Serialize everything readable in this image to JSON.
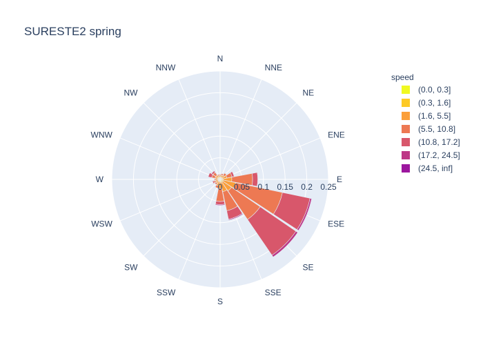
{
  "chart_data": {
    "type": "barpolar",
    "title": "SURESTE2 spring",
    "directions": [
      "N",
      "NNE",
      "NE",
      "ENE",
      "E",
      "ESE",
      "SE",
      "SSE",
      "S",
      "SSW",
      "SW",
      "WSW",
      "W",
      "WNW",
      "NW",
      "NNW"
    ],
    "radial_ticks": [
      "0",
      "0.05",
      "0.1",
      "0.15",
      "0.2",
      "0.25"
    ],
    "radial_tick_values": [
      0,
      0.05,
      0.1,
      0.15,
      0.2,
      0.25
    ],
    "radial_range": [
      0,
      0.25
    ],
    "legend_title": "speed",
    "legend_placement": "right",
    "series": [
      {
        "name": "(0.0, 0.3]",
        "color": "#f0f921",
        "values": [
          0.002,
          0.002,
          0.002,
          0.002,
          0.002,
          0.002,
          0.002,
          0.002,
          0.002,
          0.002,
          0.002,
          0.002,
          0.002,
          0.002,
          0.002,
          0.002
        ]
      },
      {
        "name": "(0.3, 1.6]",
        "color": "#fdca26",
        "values": [
          0.004,
          0.003,
          0.003,
          0.004,
          0.005,
          0.005,
          0.005,
          0.005,
          0.004,
          0.003,
          0.003,
          0.003,
          0.003,
          0.004,
          0.004,
          0.003
        ]
      },
      {
        "name": "(1.6, 5.5]",
        "color": "#fb9f3a",
        "values": [
          0.004,
          0.005,
          0.007,
          0.01,
          0.02,
          0.03,
          0.025,
          0.022,
          0.015,
          0.01,
          0.006,
          0.006,
          0.005,
          0.006,
          0.006,
          0.004
        ]
      },
      {
        "name": "(5.5, 10.8]",
        "color": "#ed7953",
        "values": [
          0.002,
          0.004,
          0.006,
          0.012,
          0.048,
          0.11,
          0.08,
          0.045,
          0.03,
          0.006,
          0.004,
          0.004,
          0.003,
          0.008,
          0.008,
          0.003
        ]
      },
      {
        "name": "(10.8, 17.2]",
        "color": "#d8576b",
        "values": [
          0.0,
          0.001,
          0.001,
          0.005,
          0.012,
          0.065,
          0.1,
          0.02,
          0.007,
          0.0,
          0.001,
          0.003,
          0.001,
          0.008,
          0.004,
          0.0
        ]
      },
      {
        "name": "(17.2, 24.5]",
        "color": "#bd3786",
        "values": [
          0,
          0,
          0,
          0,
          0.001,
          0.004,
          0.005,
          0.002,
          0.002,
          0,
          0,
          0,
          0,
          0,
          0.001,
          0
        ]
      },
      {
        "name": "(24.5, inf]",
        "color": "#9c179e",
        "values": [
          0,
          0,
          0,
          0,
          0,
          0.001,
          0,
          0,
          0,
          0,
          0,
          0,
          0,
          0,
          0,
          0
        ]
      }
    ]
  },
  "colors": {
    "polar_bg": "#e5ecf6",
    "grid": "#ffffff",
    "text": "#2a3f5f"
  }
}
